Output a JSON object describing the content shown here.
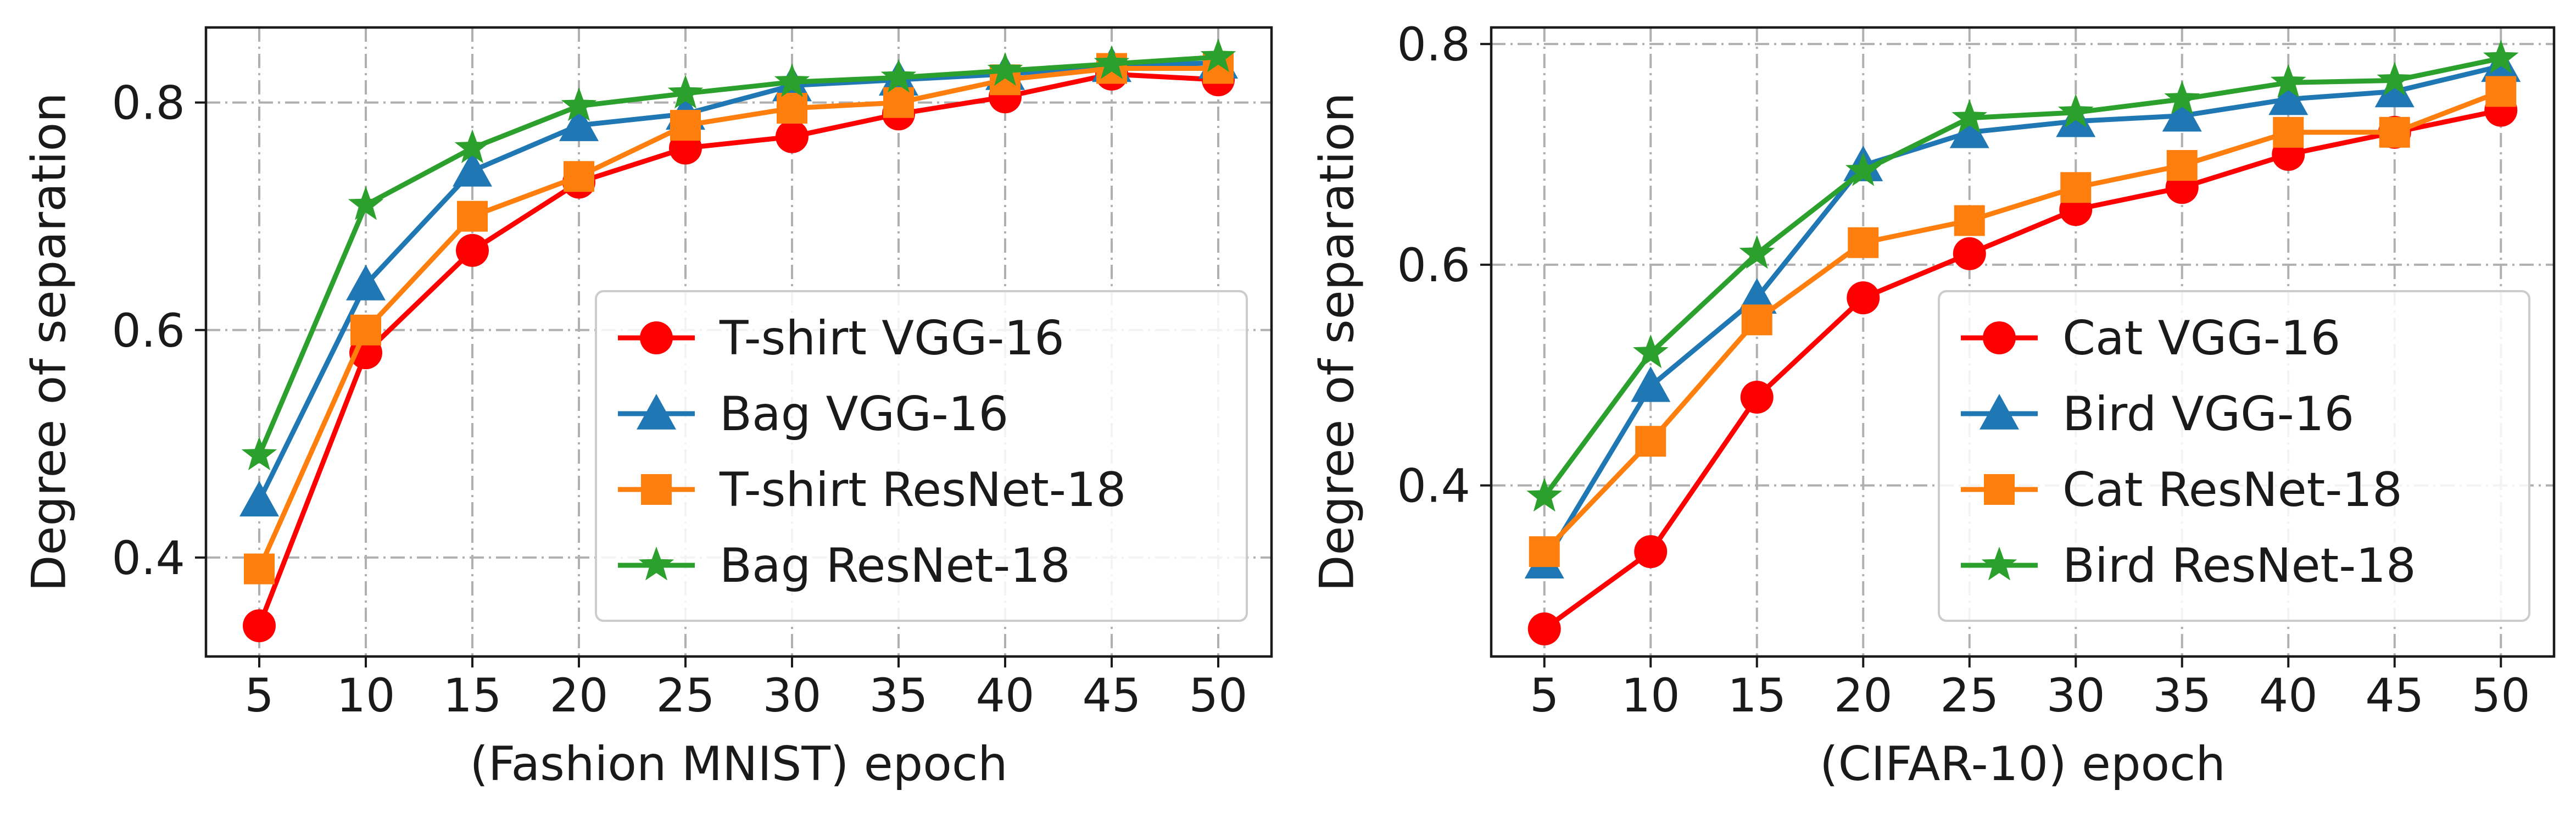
{
  "chart_data": [
    {
      "type": "line",
      "xlabel": "(Fashion MNIST) epoch",
      "ylabel": "Degree of separation",
      "x": [
        5,
        10,
        15,
        20,
        25,
        30,
        35,
        40,
        45,
        50
      ],
      "xticks": [
        "5",
        "10",
        "15",
        "20",
        "25",
        "30",
        "35",
        "40",
        "45",
        "50"
      ],
      "yticks": [
        0.4,
        0.6,
        0.8
      ],
      "ytick_labels": [
        "0.4",
        "0.6",
        "0.8"
      ],
      "xlim": [
        2.5,
        52.5
      ],
      "ylim": [
        0.313,
        0.866
      ],
      "grid": true,
      "legend_position": "bottom-right",
      "series": [
        {
          "name": "T-shirt VGG-16",
          "color": "#ff0000",
          "marker": "circle",
          "values": [
            0.34,
            0.58,
            0.67,
            0.73,
            0.76,
            0.77,
            0.79,
            0.805,
            0.825,
            0.82
          ]
        },
        {
          "name": "Bag VGG-16",
          "color": "#1f77b4",
          "marker": "triangle",
          "values": [
            0.45,
            0.64,
            0.74,
            0.78,
            0.79,
            0.815,
            0.82,
            0.825,
            0.832,
            0.835
          ]
        },
        {
          "name": "T-shirt ResNet-18",
          "color": "#ff7f0e",
          "marker": "square",
          "values": [
            0.39,
            0.6,
            0.7,
            0.735,
            0.78,
            0.795,
            0.8,
            0.82,
            0.83,
            0.83
          ]
        },
        {
          "name": "Bag ResNet-18",
          "color": "#2ca02c",
          "marker": "star",
          "values": [
            0.49,
            0.71,
            0.76,
            0.797,
            0.808,
            0.818,
            0.822,
            0.828,
            0.834,
            0.84
          ]
        }
      ]
    },
    {
      "type": "line",
      "xlabel": "(CIFAR-10) epoch",
      "ylabel": "Degree of separation",
      "x": [
        5,
        10,
        15,
        20,
        25,
        30,
        35,
        40,
        45,
        50
      ],
      "xticks": [
        "5",
        "10",
        "15",
        "20",
        "25",
        "30",
        "35",
        "40",
        "45",
        "50"
      ],
      "yticks": [
        0.4,
        0.6,
        0.8
      ],
      "ytick_labels": [
        "0.4",
        "0.6",
        "0.8"
      ],
      "xlim": [
        2.5,
        52.5
      ],
      "ylim": [
        0.245,
        0.815
      ],
      "grid": true,
      "legend_position": "bottom-right",
      "series": [
        {
          "name": "Cat VGG-16",
          "color": "#ff0000",
          "marker": "circle",
          "values": [
            0.27,
            0.34,
            0.48,
            0.57,
            0.61,
            0.65,
            0.67,
            0.7,
            0.72,
            0.74
          ]
        },
        {
          "name": "Bird VGG-16",
          "color": "#1f77b4",
          "marker": "triangle",
          "values": [
            0.33,
            0.49,
            0.57,
            0.69,
            0.72,
            0.73,
            0.735,
            0.75,
            0.757,
            0.78
          ]
        },
        {
          "name": "Cat ResNet-18",
          "color": "#ff7f0e",
          "marker": "square",
          "values": [
            0.34,
            0.44,
            0.55,
            0.62,
            0.64,
            0.67,
            0.69,
            0.72,
            0.72,
            0.757
          ]
        },
        {
          "name": "Bird ResNet-18",
          "color": "#2ca02c",
          "marker": "star",
          "values": [
            0.39,
            0.52,
            0.61,
            0.685,
            0.733,
            0.738,
            0.75,
            0.765,
            0.767,
            0.787
          ]
        }
      ]
    }
  ]
}
